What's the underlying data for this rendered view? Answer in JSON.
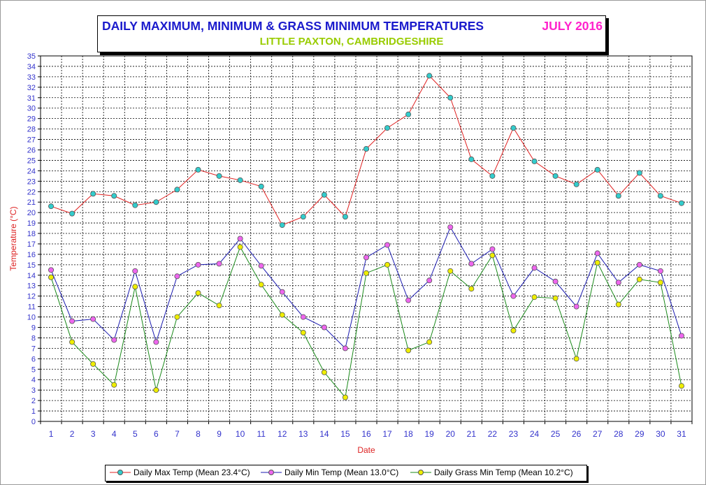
{
  "title": {
    "main": "DAILY MAXIMUM, MINIMUM & GRASS MINIMUM TEMPERATURES",
    "month": "JULY 2016",
    "subtitle": "LITTLE PAXTON, CAMBRIDGESHIRE"
  },
  "colors": {
    "title": "#1a1acc",
    "month": "#ff22cc",
    "subtitle": "#99cc00",
    "axis_text": "#3333cc",
    "axis_label": "#dd2222"
  },
  "legend": [
    {
      "label": "Daily Max Temp (Mean 23.4°C)",
      "line": "#e02020",
      "marker": "#33cccc"
    },
    {
      "label": "Daily Min Temp (Mean 13.0°C)",
      "line": "#1a1ab0",
      "marker": "#ee66ee"
    },
    {
      "label": "Daily Grass Min Temp (Mean 10.2°C)",
      "line": "#1a8a1a",
      "marker": "#eeee00"
    }
  ],
  "chart_data": {
    "type": "line",
    "xlabel": "Date",
    "ylabel": "Temperature (°C)",
    "ylim": [
      0,
      35
    ],
    "grid": true,
    "legend_position": "bottom",
    "x": [
      1,
      2,
      3,
      4,
      5,
      6,
      7,
      8,
      9,
      10,
      11,
      12,
      13,
      14,
      15,
      16,
      17,
      18,
      19,
      20,
      21,
      22,
      23,
      24,
      25,
      26,
      27,
      28,
      29,
      30,
      31
    ],
    "series": [
      {
        "name": "Daily Max Temp (Mean 23.4°C)",
        "line": "#e02020",
        "marker": "#33cccc",
        "values": [
          20.6,
          19.9,
          21.8,
          21.6,
          20.7,
          21.0,
          22.2,
          24.1,
          23.5,
          23.1,
          22.5,
          18.8,
          19.6,
          21.7,
          19.6,
          26.1,
          28.1,
          29.4,
          33.1,
          31.0,
          25.1,
          23.5,
          28.1,
          24.9,
          23.5,
          22.7,
          24.1,
          21.6,
          23.8,
          21.6,
          20.9
        ]
      },
      {
        "name": "Daily Min Temp (Mean 13.0°C)",
        "line": "#1a1ab0",
        "marker": "#ee66ee",
        "values": [
          14.5,
          9.6,
          9.8,
          7.8,
          14.4,
          7.6,
          13.9,
          15.0,
          15.1,
          17.5,
          14.9,
          12.4,
          10.0,
          9.0,
          7.0,
          15.7,
          16.9,
          11.6,
          13.5,
          18.6,
          15.1,
          16.5,
          12.0,
          14.7,
          13.4,
          11.0,
          16.1,
          13.3,
          15.0,
          14.4,
          8.2
        ]
      },
      {
        "name": "Daily Grass Min Temp (Mean 10.2°C)",
        "line": "#1a8a1a",
        "marker": "#eeee00",
        "values": [
          13.8,
          7.6,
          5.5,
          3.5,
          12.9,
          3.0,
          10.0,
          12.3,
          11.1,
          16.7,
          13.1,
          10.2,
          8.5,
          4.7,
          2.3,
          14.2,
          15.0,
          6.8,
          7.6,
          14.4,
          12.7,
          15.9,
          8.7,
          11.9,
          11.8,
          6.0,
          15.2,
          11.2,
          13.6,
          13.3,
          3.4
        ]
      }
    ]
  }
}
